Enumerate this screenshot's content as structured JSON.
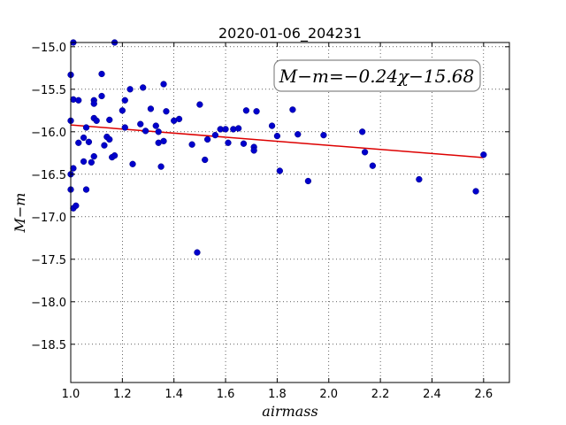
{
  "chart_data": {
    "type": "scatter",
    "title": "2020-01-06_204231",
    "xlabel": "airmass",
    "ylabel": "M−m",
    "xlim": [
      1.0,
      2.7
    ],
    "ylim": [
      -14.95,
      -18.95
    ],
    "y_inverted": true,
    "x_ticks": [
      1.0,
      1.2,
      1.4,
      1.6,
      1.8,
      2.0,
      2.2,
      2.4,
      2.6
    ],
    "x_tick_labels": [
      "1.0",
      "1.2",
      "1.4",
      "1.6",
      "1.8",
      "2.0",
      "2.2",
      "2.4",
      "2.6"
    ],
    "y_ticks": [
      -15.0,
      -15.5,
      -16.0,
      -16.5,
      -17.0,
      -17.5,
      -18.0,
      -18.5
    ],
    "y_tick_labels": [
      "−15.0",
      "−15.5",
      "−16.0",
      "−16.5",
      "−17.0",
      "−17.5",
      "−18.0",
      "−18.5"
    ],
    "grid": true,
    "annotation": "M−m=−0.24χ−15.68",
    "fit_line": {
      "slope": -0.24,
      "intercept": -15.68,
      "x_range": [
        1.0,
        2.6
      ],
      "color": "#dd0000"
    },
    "marker_color": "#0000cc",
    "points": [
      [
        1.0,
        -16.5
      ],
      [
        1.0,
        -16.68
      ],
      [
        1.0,
        -15.87
      ],
      [
        1.0,
        -15.33
      ],
      [
        1.01,
        -15.62
      ],
      [
        1.01,
        -16.9
      ],
      [
        1.01,
        -14.95
      ],
      [
        1.01,
        -16.43
      ],
      [
        1.02,
        -16.87
      ],
      [
        1.03,
        -15.63
      ],
      [
        1.03,
        -16.13
      ],
      [
        1.05,
        -16.07
      ],
      [
        1.05,
        -16.35
      ],
      [
        1.06,
        -16.68
      ],
      [
        1.07,
        -16.12
      ],
      [
        1.06,
        -15.95
      ],
      [
        1.08,
        -16.36
      ],
      [
        1.09,
        -15.84
      ],
      [
        1.09,
        -15.63
      ],
      [
        1.09,
        -15.67
      ],
      [
        1.09,
        -16.29
      ],
      [
        1.1,
        -15.87
      ],
      [
        1.12,
        -15.58
      ],
      [
        1.12,
        -15.32
      ],
      [
        1.13,
        -16.16
      ],
      [
        1.14,
        -16.06
      ],
      [
        1.15,
        -15.86
      ],
      [
        1.15,
        -16.09
      ],
      [
        1.16,
        -16.3
      ],
      [
        1.17,
        -16.28
      ],
      [
        1.17,
        -14.95
      ],
      [
        1.2,
        -15.75
      ],
      [
        1.21,
        -15.63
      ],
      [
        1.21,
        -15.95
      ],
      [
        1.23,
        -15.5
      ],
      [
        1.24,
        -16.38
      ],
      [
        1.27,
        -15.91
      ],
      [
        1.28,
        -15.48
      ],
      [
        1.29,
        -15.99
      ],
      [
        1.31,
        -15.73
      ],
      [
        1.33,
        -15.93
      ],
      [
        1.34,
        -16.0
      ],
      [
        1.34,
        -16.13
      ],
      [
        1.35,
        -16.41
      ],
      [
        1.36,
        -15.44
      ],
      [
        1.36,
        -16.11
      ],
      [
        1.37,
        -15.76
      ],
      [
        1.4,
        -15.87
      ],
      [
        1.42,
        -15.85
      ],
      [
        1.47,
        -16.15
      ],
      [
        1.49,
        -17.42
      ],
      [
        1.5,
        -15.68
      ],
      [
        1.52,
        -16.33
      ],
      [
        1.53,
        -16.09
      ],
      [
        1.56,
        -16.04
      ],
      [
        1.58,
        -15.97
      ],
      [
        1.6,
        -15.97
      ],
      [
        1.61,
        -16.13
      ],
      [
        1.63,
        -15.97
      ],
      [
        1.65,
        -15.96
      ],
      [
        1.67,
        -16.14
      ],
      [
        1.68,
        -15.75
      ],
      [
        1.71,
        -16.18
      ],
      [
        1.71,
        -16.22
      ],
      [
        1.72,
        -15.76
      ],
      [
        1.78,
        -15.93
      ],
      [
        1.8,
        -16.05
      ],
      [
        1.81,
        -16.46
      ],
      [
        1.86,
        -15.74
      ],
      [
        1.88,
        -16.03
      ],
      [
        1.92,
        -16.58
      ],
      [
        1.98,
        -16.04
      ],
      [
        2.13,
        -16.0
      ],
      [
        2.14,
        -16.24
      ],
      [
        2.17,
        -16.4
      ],
      [
        2.35,
        -16.56
      ],
      [
        2.57,
        -16.7
      ],
      [
        2.6,
        -16.27
      ]
    ]
  }
}
